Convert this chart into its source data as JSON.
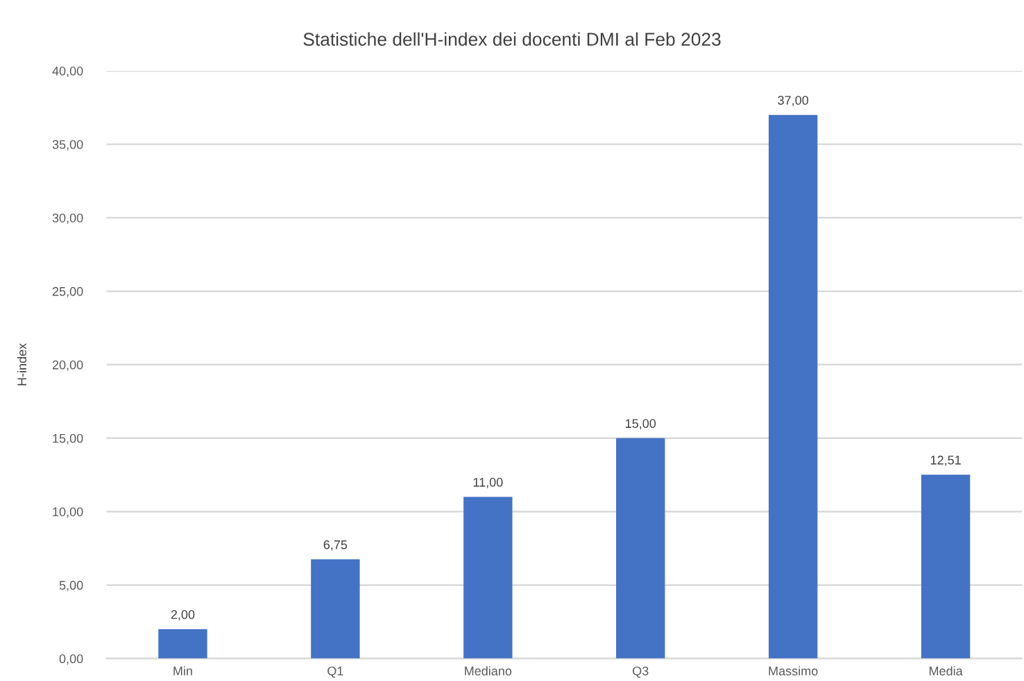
{
  "chart_data": {
    "type": "bar",
    "title": "Statistiche dell'H-index dei docenti DMI al Feb 2023",
    "ylabel": "H-index",
    "categories": [
      "Min",
      "Q1",
      "Mediano",
      "Q3",
      "Massimo",
      "Media"
    ],
    "values": [
      2.0,
      6.75,
      11.0,
      15.0,
      37.0,
      12.51
    ],
    "color": "#4472c4",
    "value_labels": [
      "2,00",
      "6,75",
      "11,00",
      "15,00",
      "37,00",
      "12,51"
    ],
    "ylim": [
      0,
      40
    ],
    "yticks": [
      {
        "value": 0,
        "label": "0,00"
      },
      {
        "value": 5,
        "label": "5,00"
      },
      {
        "value": 10,
        "label": "10,00"
      },
      {
        "value": 15,
        "label": "15,00"
      },
      {
        "value": 20,
        "label": "20,00"
      },
      {
        "value": 25,
        "label": "25,00"
      },
      {
        "value": 30,
        "label": "30,00"
      },
      {
        "value": 35,
        "label": "35,00"
      },
      {
        "value": 40,
        "label": "40,00"
      }
    ],
    "grid": "y",
    "legend": false
  }
}
